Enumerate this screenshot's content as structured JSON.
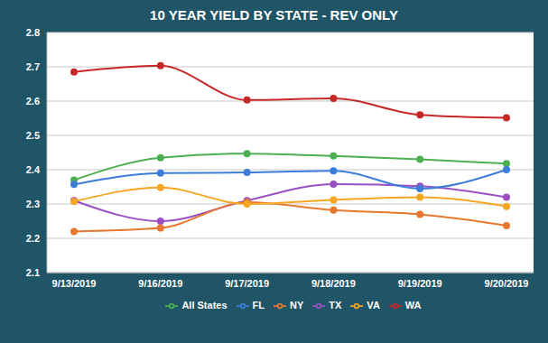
{
  "chart_data": {
    "type": "line",
    "title": "10 YEAR YIELD BY STATE - REV ONLY",
    "categories": [
      "9/13/2019",
      "9/16/2019",
      "9/17/2019",
      "9/18/2019",
      "9/19/2019",
      "9/20/2019"
    ],
    "series": [
      {
        "name": "All States",
        "color": "#4caf50",
        "values": [
          2.37,
          2.435,
          2.447,
          2.44,
          2.43,
          2.418
        ]
      },
      {
        "name": "TX",
        "color": "#9b4fc4",
        "values": [
          2.31,
          2.25,
          2.31,
          2.358,
          2.352,
          2.32
        ]
      },
      {
        "name": "NY",
        "color": "#e8782f",
        "values": [
          2.22,
          2.23,
          2.305,
          2.282,
          2.27,
          2.237
        ]
      },
      {
        "name": "FL",
        "color": "#3b7dd8",
        "values": [
          2.357,
          2.39,
          2.392,
          2.397,
          2.345,
          2.4
        ]
      },
      {
        "name": "VA",
        "color": "#f5a623",
        "values": [
          2.307,
          2.348,
          2.3,
          2.312,
          2.32,
          2.293
        ]
      },
      {
        "name": "WA",
        "color": "#c62828",
        "values": [
          2.685,
          2.703,
          2.603,
          2.608,
          2.56,
          2.551
        ]
      }
    ],
    "ylim": [
      2.1,
      2.8
    ],
    "yticks": [
      2.1,
      2.2,
      2.3,
      2.4,
      2.5,
      2.6,
      2.7,
      2.8
    ],
    "grid": true,
    "legend": "bottom",
    "marker": "circle"
  }
}
